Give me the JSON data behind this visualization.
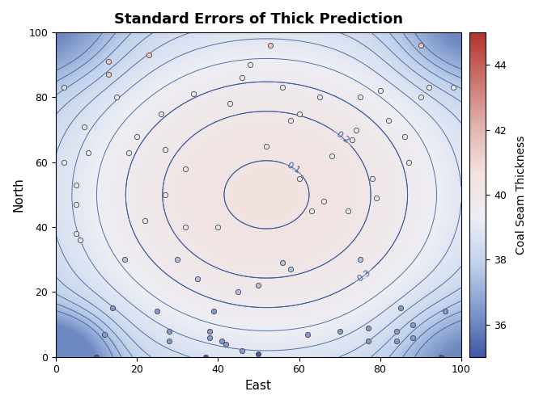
{
  "title": "Standard Errors of Thick Prediction",
  "xlabel": "East",
  "ylabel": "North",
  "colorbar_label": "Coal Seam Thickness",
  "colorbar_ticks": [
    36,
    38,
    40,
    42,
    44
  ],
  "xlim": [
    0,
    100
  ],
  "ylim": [
    0,
    100
  ],
  "xticks": [
    0,
    20,
    40,
    60,
    80,
    100
  ],
  "yticks": [
    0,
    20,
    40,
    60,
    80,
    100
  ],
  "contour_color": "#3a5a9a",
  "vmin": 35,
  "vmax": 45,
  "data_points": [
    [
      2,
      83
    ],
    [
      2,
      60
    ],
    [
      5,
      53
    ],
    [
      5,
      47
    ],
    [
      5,
      38
    ],
    [
      6,
      36
    ],
    [
      7,
      71
    ],
    [
      8,
      63
    ],
    [
      10,
      0
    ],
    [
      12,
      7
    ],
    [
      13,
      91
    ],
    [
      13,
      87
    ],
    [
      14,
      15
    ],
    [
      15,
      80
    ],
    [
      17,
      30
    ],
    [
      18,
      63
    ],
    [
      20,
      68
    ],
    [
      22,
      42
    ],
    [
      23,
      93
    ],
    [
      25,
      14
    ],
    [
      26,
      75
    ],
    [
      27,
      64
    ],
    [
      27,
      50
    ],
    [
      28,
      8
    ],
    [
      28,
      5
    ],
    [
      30,
      30
    ],
    [
      32,
      40
    ],
    [
      32,
      58
    ],
    [
      34,
      81
    ],
    [
      35,
      24
    ],
    [
      37,
      0
    ],
    [
      38,
      8
    ],
    [
      38,
      6
    ],
    [
      39,
      14
    ],
    [
      40,
      40
    ],
    [
      41,
      5
    ],
    [
      42,
      4
    ],
    [
      43,
      78
    ],
    [
      45,
      20
    ],
    [
      46,
      86
    ],
    [
      46,
      2
    ],
    [
      48,
      90
    ],
    [
      50,
      1
    ],
    [
      50,
      22
    ],
    [
      52,
      65
    ],
    [
      53,
      96
    ],
    [
      56,
      29
    ],
    [
      56,
      83
    ],
    [
      58,
      73
    ],
    [
      58,
      27
    ],
    [
      60,
      55
    ],
    [
      60,
      75
    ],
    [
      62,
      7
    ],
    [
      63,
      45
    ],
    [
      65,
      80
    ],
    [
      66,
      48
    ],
    [
      68,
      62
    ],
    [
      70,
      8
    ],
    [
      72,
      45
    ],
    [
      73,
      67
    ],
    [
      74,
      70
    ],
    [
      75,
      30
    ],
    [
      75,
      80
    ],
    [
      77,
      5
    ],
    [
      77,
      9
    ],
    [
      78,
      55
    ],
    [
      79,
      49
    ],
    [
      80,
      82
    ],
    [
      82,
      73
    ],
    [
      84,
      8
    ],
    [
      84,
      5
    ],
    [
      85,
      15
    ],
    [
      86,
      68
    ],
    [
      87,
      60
    ],
    [
      88,
      10
    ],
    [
      88,
      6
    ],
    [
      90,
      96
    ],
    [
      90,
      80
    ],
    [
      92,
      83
    ],
    [
      95,
      0
    ],
    [
      96,
      14
    ],
    [
      98,
      83
    ]
  ],
  "point_colors": [
    38.5,
    39,
    39,
    39,
    39,
    39,
    39,
    39,
    35,
    36.5,
    41.5,
    41.5,
    36.5,
    39,
    37.5,
    39,
    39,
    39,
    41.5,
    36.5,
    39,
    39,
    39,
    36.5,
    36.5,
    37.5,
    39,
    39,
    39,
    37.5,
    35,
    36.5,
    36.5,
    36.5,
    39,
    36.5,
    36.5,
    39,
    37.5,
    39,
    36.5,
    39,
    35,
    37.5,
    39,
    41.5,
    37.5,
    39,
    39,
    37.5,
    39,
    39,
    36.5,
    39,
    39,
    39,
    39,
    36.5,
    39,
    39,
    39,
    37.5,
    39,
    36.5,
    36.5,
    39,
    39,
    39,
    39,
    36.5,
    36.5,
    36.5,
    39,
    39,
    36.5,
    36.5,
    41.5,
    39,
    39,
    35,
    36.5,
    39
  ]
}
